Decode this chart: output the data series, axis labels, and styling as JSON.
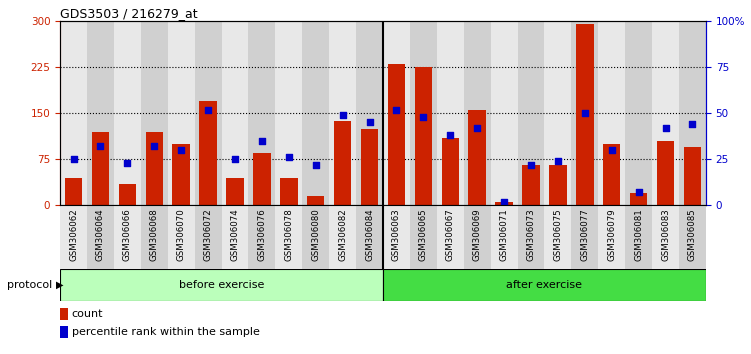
{
  "title": "GDS3503 / 216279_at",
  "categories": [
    "GSM306062",
    "GSM306064",
    "GSM306066",
    "GSM306068",
    "GSM306070",
    "GSM306072",
    "GSM306074",
    "GSM306076",
    "GSM306078",
    "GSM306080",
    "GSM306082",
    "GSM306084",
    "GSM306063",
    "GSM306065",
    "GSM306067",
    "GSM306069",
    "GSM306071",
    "GSM306073",
    "GSM306075",
    "GSM306077",
    "GSM306079",
    "GSM306081",
    "GSM306083",
    "GSM306085"
  ],
  "counts": [
    45,
    120,
    35,
    120,
    100,
    170,
    45,
    85,
    45,
    15,
    138,
    125,
    230,
    225,
    110,
    155,
    5,
    65,
    65,
    295,
    100,
    20,
    105,
    95
  ],
  "percentiles": [
    25,
    32,
    23,
    32,
    30,
    52,
    25,
    35,
    26,
    22,
    49,
    45,
    52,
    48,
    38,
    42,
    2,
    22,
    24,
    50,
    30,
    7,
    42,
    44
  ],
  "bar_color": "#cc2200",
  "percentile_color": "#0000cc",
  "ylim_left": [
    0,
    300
  ],
  "ylim_right": [
    0,
    100
  ],
  "yticks_left": [
    0,
    75,
    150,
    225,
    300
  ],
  "yticks_right": [
    0,
    25,
    50,
    75,
    100
  ],
  "ytick_labels_right": [
    "0",
    "25",
    "50",
    "75",
    "100%"
  ],
  "hlines": [
    75,
    150,
    225
  ],
  "before_count": 12,
  "after_count": 12,
  "before_label": "before exercise",
  "after_label": "after exercise",
  "protocol_label": "protocol",
  "legend_count_label": "count",
  "legend_percentile_label": "percentile rank within the sample",
  "before_color": "#bbffbb",
  "after_color": "#44dd44",
  "col_bg_even": "#e8e8e8",
  "col_bg_odd": "#d0d0d0"
}
